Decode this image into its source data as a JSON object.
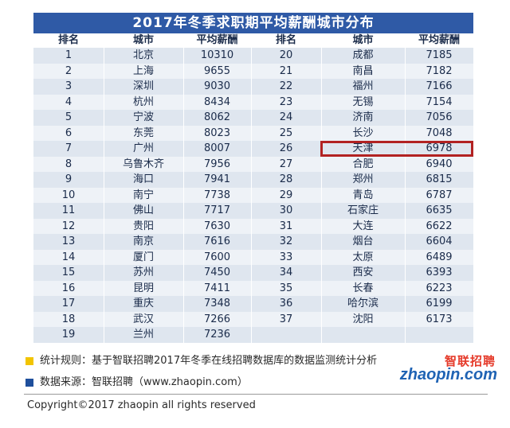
{
  "title": "2017年冬季求职期平均薪酬城市分布",
  "headers": [
    "排名",
    "城市",
    "平均薪酬",
    "排名",
    "城市",
    "平均薪酬"
  ],
  "left_rows": [
    [
      "1",
      "北京",
      "10310"
    ],
    [
      "2",
      "上海",
      "9655"
    ],
    [
      "3",
      "深圳",
      "9030"
    ],
    [
      "4",
      "杭州",
      "8434"
    ],
    [
      "5",
      "宁波",
      "8062"
    ],
    [
      "6",
      "东莞",
      "8023"
    ],
    [
      "7",
      "广州",
      "8007"
    ],
    [
      "8",
      "乌鲁木齐",
      "7956"
    ],
    [
      "9",
      "海口",
      "7941"
    ],
    [
      "10",
      "南宁",
      "7738"
    ],
    [
      "11",
      "佛山",
      "7717"
    ],
    [
      "12",
      "贵阳",
      "7630"
    ],
    [
      "13",
      "南京",
      "7616"
    ],
    [
      "14",
      "厦门",
      "7600"
    ],
    [
      "15",
      "苏州",
      "7450"
    ],
    [
      "16",
      "昆明",
      "7411"
    ],
    [
      "17",
      "重庆",
      "7348"
    ],
    [
      "18",
      "武汉",
      "7266"
    ],
    [
      "19",
      "兰州",
      "7236"
    ]
  ],
  "right_rows": [
    [
      "20",
      "成都",
      "7185"
    ],
    [
      "21",
      "南昌",
      "7182"
    ],
    [
      "22",
      "福州",
      "7166"
    ],
    [
      "23",
      "无锡",
      "7154"
    ],
    [
      "24",
      "济南",
      "7056"
    ],
    [
      "25",
      "长沙",
      "7048"
    ],
    [
      "26",
      "天津",
      "6978"
    ],
    [
      "27",
      "合肥",
      "6940"
    ],
    [
      "28",
      "郑州",
      "6815"
    ],
    [
      "29",
      "青岛",
      "6787"
    ],
    [
      "30",
      "石家庄",
      "6635"
    ],
    [
      "31",
      "大连",
      "6622"
    ],
    [
      "32",
      "烟台",
      "6604"
    ],
    [
      "33",
      "太原",
      "6489"
    ],
    [
      "34",
      "西安",
      "6393"
    ],
    [
      "35",
      "长春",
      "6223"
    ],
    [
      "36",
      "哈尔滨",
      "6199"
    ],
    [
      "37",
      "沈阳",
      "6173"
    ],
    [
      "",
      "",
      ""
    ]
  ],
  "highlighted": {
    "rank": "26",
    "city": "天津",
    "salary": "6978"
  },
  "legend": [
    {
      "text": "统计规则：基于智联招聘2017年冬季在线招聘数据库的数据监测统计分析",
      "color": "#f2c400"
    },
    {
      "text": "数据来源：智联招聘（www.zhaopin.com）",
      "color": "#1f4f9c"
    }
  ],
  "logo": {
    "cn": "智联招聘",
    "en": "zhaopin.com"
  },
  "copyright": "Copyright©2017 zhaopin all rights reserved",
  "colors": {
    "title_bg": "#2f5aa6",
    "highlight_border": "#b22222"
  }
}
